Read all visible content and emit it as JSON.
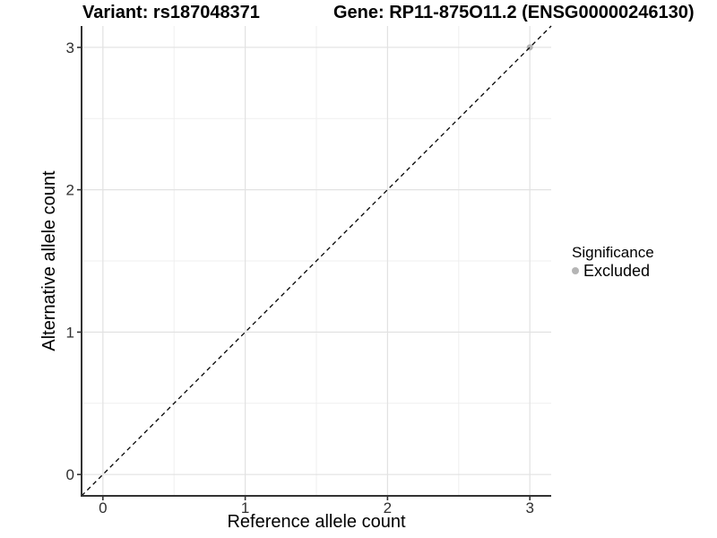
{
  "header": {
    "variant_title": "Variant: rs187048371",
    "gene_title": "Gene: RP11-875O11.2 (ENSG00000246130)"
  },
  "axes": {
    "x_label": "Reference allele count",
    "y_label": "Alternative allele count"
  },
  "legend": {
    "title": "Significance",
    "items": [
      {
        "label": "Excluded",
        "color": "#b5b5b5"
      }
    ]
  },
  "chart_data": {
    "type": "scatter",
    "title": "Variant: rs187048371 / Gene: RP11-875O11.2 (ENSG00000246130)",
    "xlabel": "Reference allele count",
    "ylabel": "Alternative allele count",
    "xlim": [
      -0.15,
      3.15
    ],
    "ylim": [
      -0.15,
      3.15
    ],
    "xticks": [
      0,
      1,
      2,
      3
    ],
    "yticks": [
      0,
      1,
      2,
      3
    ],
    "minor_ticks": [
      0.5,
      1.5,
      2.5
    ],
    "grid": "on",
    "legend_position": "right",
    "series": [
      {
        "name": "Excluded",
        "color": "#b5b5b5",
        "points": [
          {
            "x": 3,
            "y": 3
          }
        ]
      }
    ],
    "reference_line": {
      "kind": "identity",
      "slope": 1,
      "intercept": 0,
      "style": "dashed",
      "color": "#000000"
    },
    "style_colors": {
      "grid_major": "#e2e2e2",
      "grid_minor": "#efefef",
      "axis_line": "#333333",
      "tick_label": "#303030"
    }
  }
}
